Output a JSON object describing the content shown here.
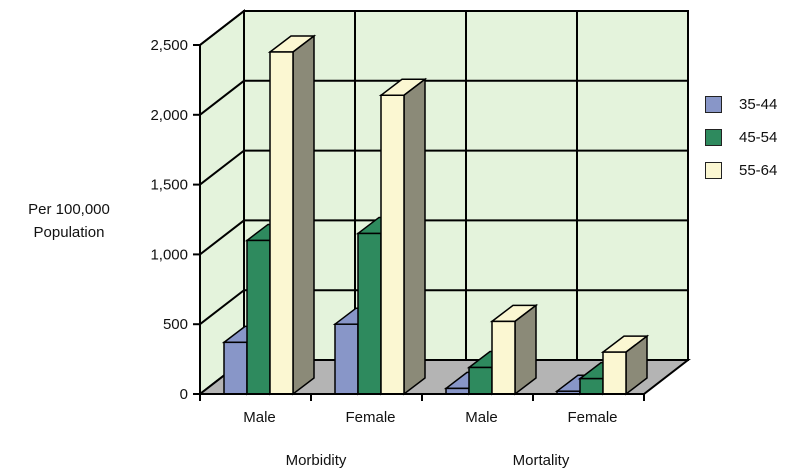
{
  "chart_data": {
    "type": "bar",
    "ylabel_lines": [
      "Per 100,000",
      "Population"
    ],
    "ylim": [
      0,
      2500
    ],
    "yticks": [
      0,
      500,
      1000,
      1500,
      2000,
      2500
    ],
    "ytick_labels": [
      "0",
      "500",
      "1,000",
      "1,500",
      "2,000",
      "2,500"
    ],
    "grid": true,
    "legend_position": "right",
    "groups": [
      {
        "name": "Morbidity",
        "categories": [
          "Male",
          "Female"
        ]
      },
      {
        "name": "Mortality",
        "categories": [
          "Male",
          "Female"
        ]
      }
    ],
    "categories": [
      "Male",
      "Female",
      "Male",
      "Female"
    ],
    "series": [
      {
        "name": "35-44",
        "values": [
          370,
          500,
          40,
          20
        ]
      },
      {
        "name": "45-54",
        "values": [
          1100,
          1150,
          190,
          110
        ]
      },
      {
        "name": "55-64",
        "values": [
          2450,
          2140,
          520,
          300
        ]
      }
    ],
    "colors": {
      "35-44": "#8896c8",
      "45-54": "#2e8a5e",
      "55-64": "#fbf7d2",
      "wall": "#e4f3dc",
      "floor": "#b4b4b4",
      "shade": "#8b8a78"
    }
  }
}
